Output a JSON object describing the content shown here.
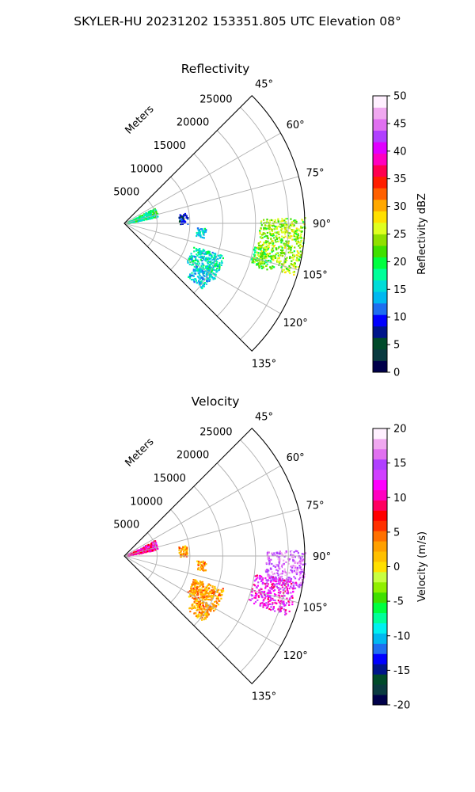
{
  "figure_title": "SKYLER-HU  20231202  153351.805 UTC Elevation 08°",
  "chart_data": [
    {
      "type": "heatmap",
      "projection": "polar-sector",
      "title": "Reflectivity",
      "radial_label": "Meters",
      "radial_ticks": [
        "5000",
        "10000",
        "15000",
        "20000",
        "25000"
      ],
      "radial_tick_values": [
        5000,
        10000,
        15000,
        20000,
        25000
      ],
      "radial_max": 27500,
      "azimuth_ticks": [
        "45°",
        "60°",
        "75°",
        "90°",
        "105°",
        "120°",
        "135°"
      ],
      "azimuth_tick_values": [
        45,
        60,
        75,
        90,
        105,
        120,
        135
      ],
      "azimuth_range": [
        45,
        135
      ],
      "grid": true,
      "colorbar": {
        "label": "Reflectivity dBZ",
        "ticks": [
          "0",
          "5",
          "10",
          "15",
          "20",
          "25",
          "30",
          "35",
          "40",
          "45",
          "50"
        ],
        "range": [
          0,
          50
        ],
        "colors": [
          "#00004a",
          "#0a3a40",
          "#004a2a",
          "#00158a",
          "#0000ff",
          "#1e6ef0",
          "#00b8f0",
          "#00dcd8",
          "#00ff9a",
          "#00ff40",
          "#40e000",
          "#90e000",
          "#e0ff20",
          "#ffe000",
          "#ffa800",
          "#ff6000",
          "#ff1e00",
          "#ff0050",
          "#ff00c0",
          "#e000ff",
          "#b040ff",
          "#e070f0",
          "#f0a8f0",
          "#fff0ff"
        ]
      },
      "echo_regions": [
        {
          "az": [
            62,
            78
          ],
          "range_m": [
            400,
            5200
          ],
          "value": 18
        },
        {
          "az": [
            80,
            90
          ],
          "range_m": [
            8300,
            9600
          ],
          "value": 8
        },
        {
          "az": [
            93,
            100
          ],
          "range_m": [
            11000,
            12500
          ],
          "value": 15
        },
        {
          "az": [
            100,
            108
          ],
          "range_m": [
            20000,
            23000
          ],
          "value": 20
        },
        {
          "az": [
            88,
            107
          ],
          "range_m": [
            20500,
            27500
          ],
          "value": 24
        },
        {
          "az": [
            108,
            122
          ],
          "range_m": [
            11000,
            16000
          ],
          "value": 16
        },
        {
          "az": [
            120,
            130
          ],
          "range_m": [
            12500,
            15500
          ],
          "value": 15
        }
      ]
    },
    {
      "type": "heatmap",
      "projection": "polar-sector",
      "title": "Velocity",
      "radial_label": "Meters",
      "radial_ticks": [
        "5000",
        "10000",
        "15000",
        "20000",
        "25000"
      ],
      "radial_tick_values": [
        5000,
        10000,
        15000,
        20000,
        25000
      ],
      "radial_max": 27500,
      "azimuth_ticks": [
        "45°",
        "60°",
        "75°",
        "90°",
        "105°",
        "120°",
        "135°"
      ],
      "azimuth_tick_values": [
        45,
        60,
        75,
        90,
        105,
        120,
        135
      ],
      "azimuth_range": [
        45,
        135
      ],
      "grid": true,
      "colorbar": {
        "label": "Velocity (m/s)",
        "ticks": [
          "-20",
          "-15",
          "-10",
          "-5",
          "0",
          "5",
          "10",
          "15",
          "20"
        ],
        "range": [
          -20,
          20
        ],
        "colors": [
          "#00004a",
          "#0a3a40",
          "#004a2a",
          "#00158a",
          "#0000ff",
          "#1e6ef0",
          "#00b8f0",
          "#00f0f0",
          "#00ff9a",
          "#00ff40",
          "#40e000",
          "#90f000",
          "#c8ff40",
          "#ffe000",
          "#ffc000",
          "#ffa000",
          "#ff7000",
          "#ff3000",
          "#ff0000",
          "#ff0060",
          "#ff00c0",
          "#ff00ff",
          "#d040ff",
          "#b040ff",
          "#e070f0",
          "#f0a8f0",
          "#fff0ff"
        ]
      },
      "echo_regions": [
        {
          "az": [
            62,
            78
          ],
          "range_m": [
            400,
            5200
          ],
          "value": 10
        },
        {
          "az": [
            80,
            90
          ],
          "range_m": [
            8300,
            9600
          ],
          "value": 3
        },
        {
          "az": [
            93,
            100
          ],
          "range_m": [
            11000,
            12500
          ],
          "value": 3
        },
        {
          "az": [
            88,
            100
          ],
          "range_m": [
            21500,
            27500
          ],
          "value": 16
        },
        {
          "az": [
            98,
            110
          ],
          "range_m": [
            20000,
            26500
          ],
          "value": 12
        },
        {
          "az": [
            108,
            122
          ],
          "range_m": [
            11000,
            16000
          ],
          "value": 3
        },
        {
          "az": [
            120,
            130
          ],
          "range_m": [
            12500,
            15500
          ],
          "value": 3
        }
      ]
    }
  ]
}
